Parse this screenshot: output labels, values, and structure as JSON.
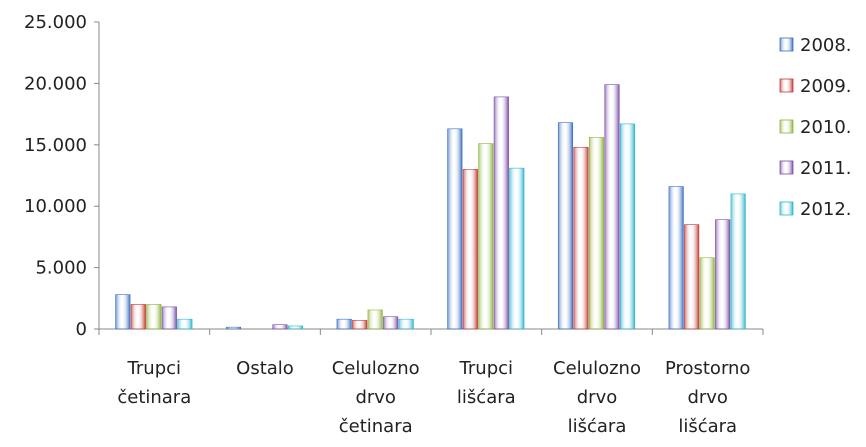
{
  "chart_data": {
    "type": "bar",
    "title": "",
    "xlabel": "",
    "ylabel": "",
    "ylim": [
      0,
      25000
    ],
    "yticks": [
      0,
      5000,
      10000,
      15000,
      20000,
      25000
    ],
    "ytick_labels": [
      "0",
      "5.000",
      "10.000",
      "15.000",
      "20.000",
      "25.000"
    ],
    "grid": false,
    "legend_position": "right",
    "categories": [
      [
        "Trupci",
        "četinara"
      ],
      [
        "Ostalo"
      ],
      [
        "Celulozno",
        "drvo",
        "četinara"
      ],
      [
        "Trupci",
        "lišćara"
      ],
      [
        "Celulozno",
        "drvo",
        "lišćara"
      ],
      [
        "Prostorno",
        "drvo",
        "lišćara"
      ]
    ],
    "series": [
      {
        "name": "2008.",
        "color": "#3b6fc1",
        "values": [
          2800,
          150,
          800,
          16300,
          16800,
          11600
        ]
      },
      {
        "name": "2009.",
        "color": "#c23a36",
        "values": [
          2000,
          0,
          700,
          13000,
          14800,
          8500
        ]
      },
      {
        "name": "2010.",
        "color": "#8fb43c",
        "values": [
          2000,
          0,
          1550,
          15100,
          15600,
          5800
        ]
      },
      {
        "name": "2011.",
        "color": "#7b4ea5",
        "values": [
          1800,
          350,
          1000,
          18900,
          19900,
          8900
        ]
      },
      {
        "name": "2012.",
        "color": "#2fb6cc",
        "values": [
          800,
          250,
          800,
          13100,
          16700,
          11000
        ]
      }
    ]
  }
}
